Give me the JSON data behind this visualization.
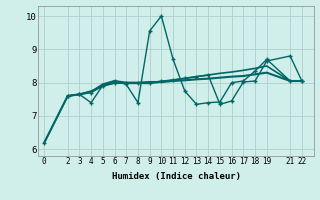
{
  "xlabel": "Humidex (Indice chaleur)",
  "bg_color": "#d0eeea",
  "grid_color": "#b0cccc",
  "line_color": "#006666",
  "xlim": [
    -0.5,
    23
  ],
  "ylim": [
    5.8,
    10.3
  ],
  "xticks": [
    0,
    2,
    3,
    4,
    5,
    6,
    7,
    8,
    9,
    10,
    11,
    12,
    13,
    14,
    15,
    16,
    17,
    18,
    19,
    21,
    22
  ],
  "yticks": [
    6,
    7,
    8,
    9,
    10
  ],
  "series": [
    {
      "x": [
        0,
        2,
        3,
        4,
        5,
        6,
        7,
        8,
        9,
        10,
        11,
        12,
        13,
        14,
        15,
        16,
        17,
        18,
        19,
        21,
        22
      ],
      "y": [
        6.2,
        7.6,
        7.65,
        7.4,
        7.92,
        8.05,
        7.95,
        7.4,
        9.55,
        10.0,
        8.7,
        7.75,
        7.35,
        7.4,
        7.42,
        8.0,
        8.05,
        8.35,
        8.7,
        8.05,
        8.05
      ],
      "marker": true,
      "lw": 1.0
    },
    {
      "x": [
        0,
        2,
        3,
        4,
        5,
        6,
        7,
        8,
        9,
        10,
        11,
        12,
        13,
        14,
        15,
        16,
        17,
        18,
        19,
        21,
        22
      ],
      "y": [
        6.2,
        7.6,
        7.65,
        7.72,
        7.95,
        8.05,
        8.0,
        8.0,
        8.02,
        8.02,
        8.05,
        8.07,
        8.1,
        8.12,
        8.15,
        8.18,
        8.2,
        8.25,
        8.3,
        8.05,
        8.05
      ],
      "marker": false,
      "lw": 1.5
    },
    {
      "x": [
        2,
        3,
        4,
        5,
        6,
        7,
        8,
        9,
        10,
        11,
        12,
        13,
        14,
        15,
        16,
        17,
        18,
        19,
        21,
        22
      ],
      "y": [
        7.6,
        7.65,
        7.75,
        7.9,
        8.0,
        7.98,
        7.98,
        7.98,
        8.02,
        8.08,
        8.13,
        8.18,
        8.23,
        8.28,
        8.32,
        8.37,
        8.43,
        8.5,
        8.05,
        8.05
      ],
      "marker": false,
      "lw": 1.2
    },
    {
      "x": [
        2,
        3,
        4,
        5,
        6,
        7,
        8,
        9,
        10,
        11,
        12,
        13,
        14,
        15,
        16,
        17,
        18,
        19,
        21,
        22
      ],
      "y": [
        7.6,
        7.65,
        7.7,
        7.9,
        7.98,
        7.98,
        7.98,
        8.0,
        8.05,
        8.08,
        8.13,
        8.18,
        8.23,
        7.35,
        7.45,
        8.02,
        8.05,
        8.65,
        8.8,
        8.05
      ],
      "marker": true,
      "lw": 1.0
    }
  ]
}
